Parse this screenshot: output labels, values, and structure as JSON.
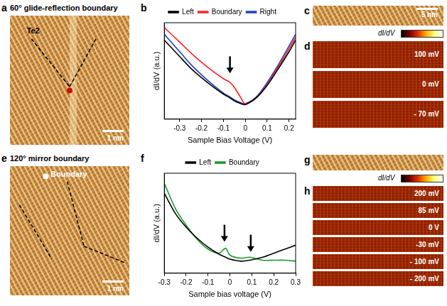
{
  "chart_data": [
    {
      "panel": "b",
      "type": "line",
      "x_label": "Sample Bias Voltage (V)",
      "y_label": "dI/dV (a.u.)",
      "x": [
        -0.37,
        -0.3,
        -0.25,
        -0.2,
        -0.15,
        -0.1,
        -0.07,
        -0.05,
        -0.02,
        0,
        0.05,
        0.1,
        0.15,
        0.2,
        0.23
      ],
      "series": [
        {
          "name": "Left",
          "color": "#000000",
          "values": [
            8.2,
            6.5,
            5.3,
            4.3,
            3.4,
            2.6,
            2.2,
            1.9,
            1.6,
            1.5,
            2.2,
            3.5,
            5.2,
            7.0,
            8.2
          ]
        },
        {
          "name": "Boundary",
          "color": "#ff2020",
          "values": [
            9.5,
            8.0,
            6.9,
            5.9,
            5.0,
            4.2,
            3.8,
            3.3,
            2.2,
            1.6,
            2.2,
            3.6,
            5.4,
            7.3,
            8.5
          ]
        },
        {
          "name": "Right",
          "color": "#1f3fbf",
          "values": [
            8.8,
            7.0,
            5.7,
            4.6,
            3.6,
            2.7,
            2.3,
            2.0,
            1.7,
            1.6,
            2.3,
            3.8,
            5.6,
            7.6,
            8.8
          ]
        }
      ],
      "xlim": [
        -0.37,
        0.23
      ],
      "xticks": [
        -0.3,
        -0.2,
        -0.1,
        0,
        0.1,
        0.2
      ],
      "ylim": [
        0,
        10
      ],
      "tick_labels": "x",
      "grid": false,
      "legend": "top",
      "arrows": [
        {
          "x": -0.07,
          "y": 4.6
        }
      ]
    },
    {
      "panel": "f",
      "type": "line",
      "x_label": "Sample bias voltage (V)",
      "y_label": "dI/dV (a.u.)",
      "x": [
        -0.3,
        -0.25,
        -0.2,
        -0.15,
        -0.1,
        -0.05,
        -0.02,
        0,
        0.05,
        0.09,
        0.15,
        0.2,
        0.25,
        0.3
      ],
      "series": [
        {
          "name": "Left",
          "color": "#000000",
          "values": [
            8.0,
            6.0,
            4.6,
            3.5,
            2.6,
            1.9,
            1.6,
            1.4,
            1.2,
            1.3,
            1.6,
            2.0,
            2.4,
            2.8
          ]
        },
        {
          "name": "Boundary",
          "color": "#1a9a2a",
          "values": [
            9.0,
            6.5,
            4.8,
            3.4,
            2.4,
            2.0,
            2.5,
            1.8,
            1.5,
            1.6,
            1.3,
            1.3,
            1.3,
            1.2
          ]
        }
      ],
      "xlim": [
        -0.3,
        0.3
      ],
      "xticks": [
        -0.3,
        -0.2,
        -0.1,
        0,
        0.1,
        0.2,
        0.3
      ],
      "ylim": [
        0,
        10
      ],
      "tick_labels": "x",
      "grid": false,
      "legend": "top",
      "arrows": [
        {
          "x": -0.025,
          "y": 3.0
        },
        {
          "x": 0.095,
          "y": 2.0
        }
      ]
    }
  ],
  "figure": {
    "panels": [
      {
        "letter": "a",
        "title": "60° glide-reflection boundary",
        "label": "Te2",
        "scale_bar": "1 nm"
      },
      {
        "letter": "c",
        "scale_bar": "5 nm"
      },
      {
        "letter": "d",
        "colorbar_label": "dI/dV",
        "maps": [
          "100 mV",
          "0 mV",
          "- 70 mV"
        ]
      },
      {
        "letter": "e",
        "title": "120° mirror boundary",
        "label": "Boundary",
        "scale_bar": "1 nm"
      },
      {
        "letter": "g"
      },
      {
        "letter": "h",
        "colorbar_label": "dI/dV",
        "maps": [
          "200 mV",
          "85 mV",
          "0 V",
          "-30 mV",
          "- 100 mV",
          "- 200 mV"
        ]
      }
    ]
  }
}
